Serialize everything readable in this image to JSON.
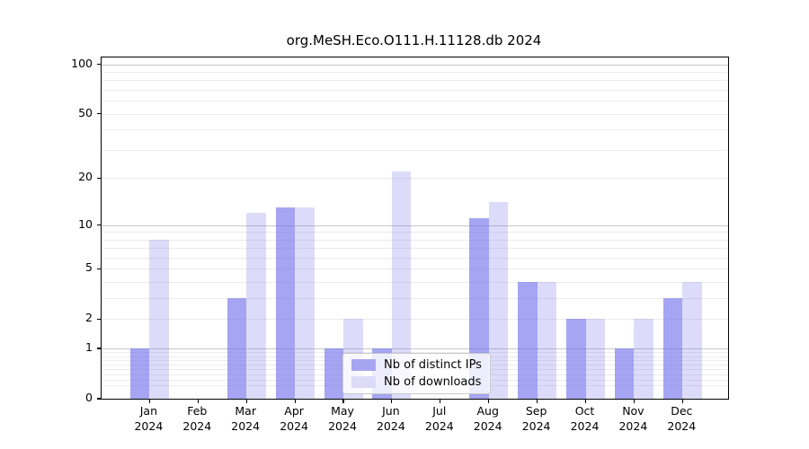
{
  "title": "org.MeSH.Eco.O111.H.11128.db 2024",
  "chart_data": {
    "type": "bar",
    "title": "org.MeSH.Eco.O111.H.11128.db 2024",
    "categories": [
      "Jan 2024",
      "Feb 2024",
      "Mar 2024",
      "Apr 2024",
      "May 2024",
      "Jun 2024",
      "Jul 2024",
      "Aug 2024",
      "Sep 2024",
      "Oct 2024",
      "Nov 2024",
      "Dec 2024"
    ],
    "series": [
      {
        "name": "Nb of distinct IPs",
        "values": [
          1,
          0,
          3,
          13,
          1,
          1,
          0,
          11,
          4,
          2,
          1,
          3
        ]
      },
      {
        "name": "Nb of downloads",
        "values": [
          8,
          0,
          12,
          13,
          2,
          22,
          0,
          14,
          4,
          2,
          2,
          4
        ]
      }
    ],
    "xlabel": "",
    "ylabel": "",
    "yscale": "log1p",
    "ylim": [
      0,
      110
    ],
    "yticks": [
      0,
      1,
      2,
      5,
      10,
      20,
      50,
      100
    ],
    "grid": true,
    "legend_position": "inside lower center"
  },
  "colors": {
    "bar_ips": "#a5a5f0",
    "bar_downloads": "#dcdcf8",
    "bar_ips_fill": "rgba(110,110,235,0.62)",
    "bar_downloads_fill": "rgba(110,110,235,0.24)",
    "grid_major": "#c8c8c8",
    "grid_minor": "#ececec",
    "axis": "#000000",
    "background": "#ffffff"
  }
}
